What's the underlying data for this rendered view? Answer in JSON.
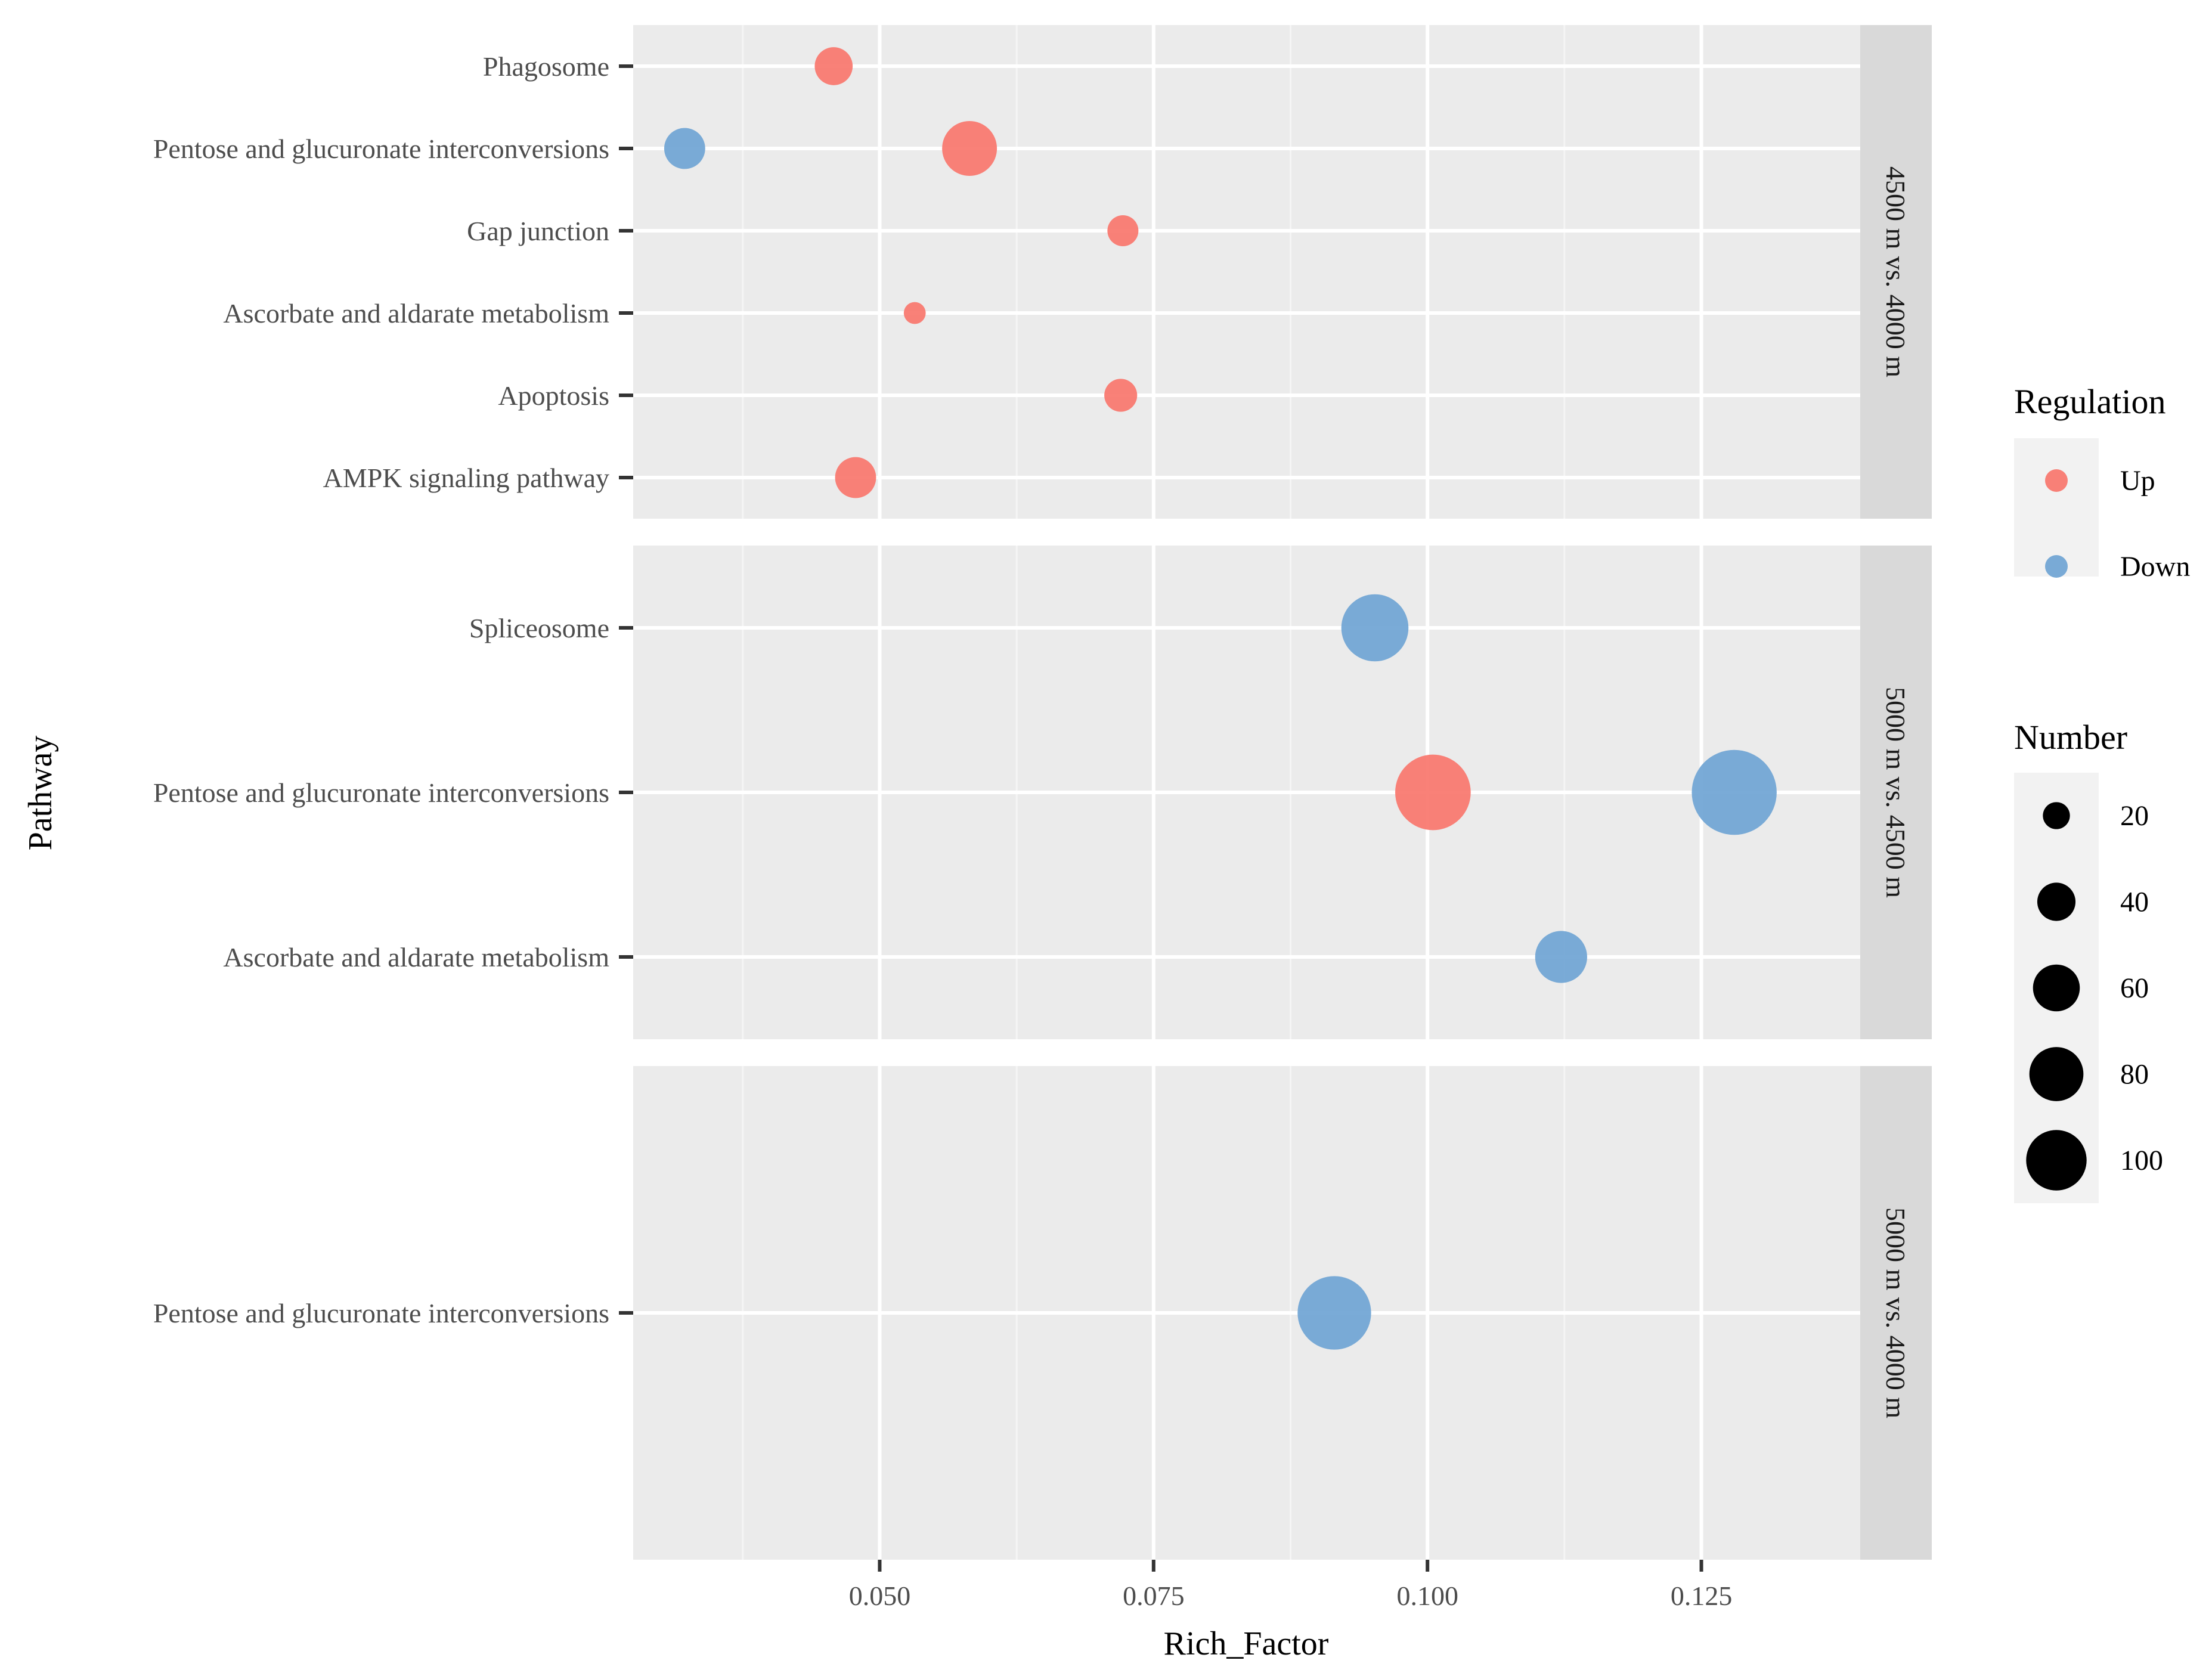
{
  "chart_data": {
    "type": "scatter",
    "title": "",
    "xlabel": "Rich_Factor",
    "ylabel": "Pathway",
    "xlim": [
      0.0275,
      0.1395
    ],
    "x_ticks": [
      0.05,
      0.075,
      0.1,
      0.125
    ],
    "x_tick_labels": [
      "0.050",
      "0.075",
      "0.100",
      "0.125"
    ],
    "grid": true,
    "colors": {
      "Up": "#F8766D",
      "Down": "#6FA4D4"
    },
    "panels": [
      {
        "label": "4500 m vs. 4000 m",
        "categories": [
          "Phagosome",
          "Pentose and glucuronate interconversions",
          "Gap junction",
          "Ascorbate and aldarate metabolism",
          "Apoptosis",
          "AMPK signaling pathway"
        ],
        "points": [
          {
            "pathway": "Phagosome",
            "x": 0.0458,
            "regulation": "Up",
            "number": 24
          },
          {
            "pathway": "Pentose and glucuronate interconversions",
            "x": 0.0322,
            "regulation": "Down",
            "number": 28
          },
          {
            "pathway": "Pentose and glucuronate interconversions",
            "x": 0.0582,
            "regulation": "Up",
            "number": 50
          },
          {
            "pathway": "Gap junction",
            "x": 0.0722,
            "regulation": "Up",
            "number": 16
          },
          {
            "pathway": "Ascorbate and aldarate metabolism",
            "x": 0.0532,
            "regulation": "Up",
            "number": 8
          },
          {
            "pathway": "Apoptosis",
            "x": 0.072,
            "regulation": "Up",
            "number": 18
          },
          {
            "pathway": "AMPK signaling pathway",
            "x": 0.0478,
            "regulation": "Up",
            "number": 28
          }
        ]
      },
      {
        "label": "5000 m vs. 4500 m",
        "categories": [
          "Spliceosome",
          "Pentose and glucuronate interconversions",
          "Ascorbate and aldarate metabolism"
        ],
        "points": [
          {
            "pathway": "Spliceosome",
            "x": 0.0952,
            "regulation": "Down",
            "number": 75
          },
          {
            "pathway": "Pentose and glucuronate interconversions",
            "x": 0.1005,
            "regulation": "Up",
            "number": 95
          },
          {
            "pathway": "Pentose and glucuronate interconversions",
            "x": 0.128,
            "regulation": "Down",
            "number": 120
          },
          {
            "pathway": "Ascorbate and aldarate metabolism",
            "x": 0.1122,
            "regulation": "Down",
            "number": 45
          }
        ]
      },
      {
        "label": "5000 m vs. 4000 m",
        "categories": [
          "Pentose and glucuronate interconversions"
        ],
        "points": [
          {
            "pathway": "Pentose and glucuronate interconversions",
            "x": 0.0915,
            "regulation": "Down",
            "number": 90
          }
        ]
      }
    ],
    "legend": {
      "position": "right",
      "regulation_title": "Regulation",
      "regulation_items": [
        {
          "label": "Up",
          "color": "#F8766D"
        },
        {
          "label": "Down",
          "color": "#6FA4D4"
        }
      ],
      "number_title": "Number",
      "number_items": [
        {
          "label": "20",
          "value": 20
        },
        {
          "label": "40",
          "value": 40
        },
        {
          "label": "60",
          "value": 60
        },
        {
          "label": "80",
          "value": 80
        },
        {
          "label": "100",
          "value": 100
        }
      ]
    }
  }
}
